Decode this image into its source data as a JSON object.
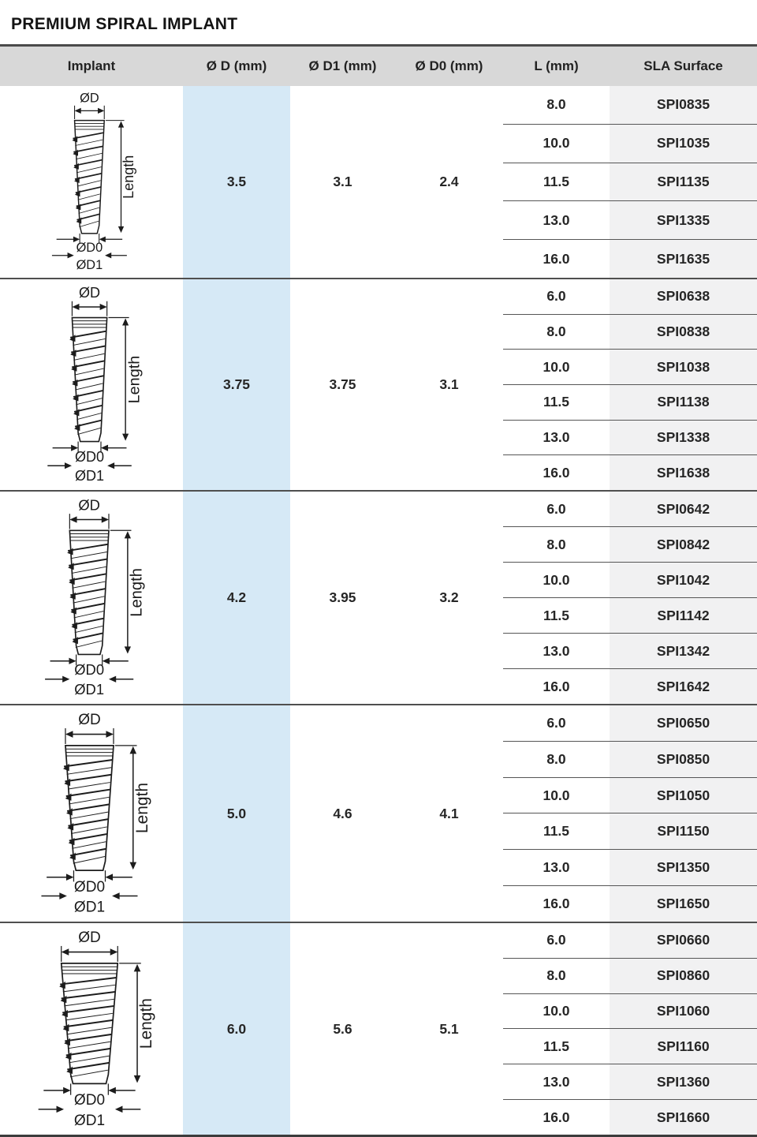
{
  "title": "PREMIUM SPIRAL IMPLANT",
  "colors": {
    "accent_blue": "#d6e9f6",
    "header_bg": "#d8d8d8",
    "sla_bg": "#f1f1f2",
    "separator_dark": "#4a4a4a",
    "row_line": "#565656",
    "text": "#262626"
  },
  "table": {
    "headers": [
      "Implant",
      "Ø D (mm)",
      "Ø D1 (mm)",
      "Ø D0 (mm)",
      "L (mm)",
      "SLA Surface"
    ],
    "diagram_labels": {
      "d": "ØD",
      "length": "Length",
      "d0": "ØD0",
      "d1": "ØD1"
    },
    "groups": [
      {
        "d": "3.5",
        "d1": "3.1",
        "d0": "2.4",
        "rows": [
          {
            "l": "8.0",
            "code": "SPI0835"
          },
          {
            "l": "10.0",
            "code": "SPI1035"
          },
          {
            "l": "11.5",
            "code": "SPI1135"
          },
          {
            "l": "13.0",
            "code": "SPI1335"
          },
          {
            "l": "16.0",
            "code": "SPI1635"
          }
        ]
      },
      {
        "d": "3.75",
        "d1": "3.75",
        "d0": "3.1",
        "rows": [
          {
            "l": "6.0",
            "code": "SPI0638"
          },
          {
            "l": "8.0",
            "code": "SPI0838"
          },
          {
            "l": "10.0",
            "code": "SPI1038"
          },
          {
            "l": "11.5",
            "code": "SPI1138"
          },
          {
            "l": "13.0",
            "code": "SPI1338"
          },
          {
            "l": "16.0",
            "code": "SPI1638"
          }
        ]
      },
      {
        "d": "4.2",
        "d1": "3.95",
        "d0": "3.2",
        "rows": [
          {
            "l": "6.0",
            "code": "SPI0642"
          },
          {
            "l": "8.0",
            "code": "SPI0842"
          },
          {
            "l": "10.0",
            "code": "SPI1042"
          },
          {
            "l": "11.5",
            "code": "SPI1142"
          },
          {
            "l": "13.0",
            "code": "SPI1342"
          },
          {
            "l": "16.0",
            "code": "SPI1642"
          }
        ]
      },
      {
        "d": "5.0",
        "d1": "4.6",
        "d0": "4.1",
        "rows": [
          {
            "l": "6.0",
            "code": "SPI0650"
          },
          {
            "l": "8.0",
            "code": "SPI0850"
          },
          {
            "l": "10.0",
            "code": "SPI1050"
          },
          {
            "l": "11.5",
            "code": "SPI1150"
          },
          {
            "l": "13.0",
            "code": "SPI1350"
          },
          {
            "l": "16.0",
            "code": "SPI1650"
          }
        ]
      },
      {
        "d": "6.0",
        "d1": "5.6",
        "d0": "5.1",
        "rows": [
          {
            "l": "6.0",
            "code": "SPI0660"
          },
          {
            "l": "8.0",
            "code": "SPI0860"
          },
          {
            "l": "10.0",
            "code": "SPI1060"
          },
          {
            "l": "11.5",
            "code": "SPI1160"
          },
          {
            "l": "13.0",
            "code": "SPI1360"
          },
          {
            "l": "16.0",
            "code": "SPI1660"
          }
        ]
      }
    ]
  }
}
